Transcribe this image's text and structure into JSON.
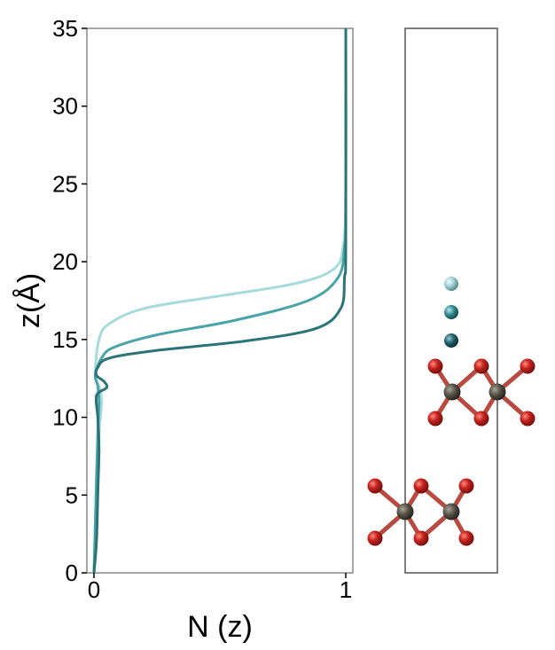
{
  "chart_data": {
    "type": "line",
    "xlabel": "N (z)",
    "ylabel": "z(Å)",
    "xlim": [
      0,
      1
    ],
    "ylim": [
      0,
      35
    ],
    "xticks": [
      "0",
      "1"
    ],
    "yticks": [
      "0",
      "5",
      "10",
      "15",
      "20",
      "25",
      "30",
      "35"
    ],
    "grid": false,
    "legend": "none",
    "series": [
      {
        "color": "#a6dadd",
        "points": [
          [
            0.0,
            0
          ],
          [
            0.005,
            3
          ],
          [
            0.01,
            6
          ],
          [
            0.02,
            9
          ],
          [
            0.03,
            11
          ],
          [
            0.02,
            12
          ],
          [
            0.005,
            12.8
          ],
          [
            0.02,
            15
          ],
          [
            0.06,
            16
          ],
          [
            0.2,
            17
          ],
          [
            0.5,
            17.8
          ],
          [
            0.8,
            18.6
          ],
          [
            0.95,
            19.5
          ],
          [
            0.99,
            21
          ],
          [
            1.0,
            25
          ],
          [
            1.0,
            35
          ]
        ]
      },
      {
        "color": "#4aa3a6",
        "points": [
          [
            0.0,
            0
          ],
          [
            0.005,
            3
          ],
          [
            0.01,
            6
          ],
          [
            0.015,
            9
          ],
          [
            0.02,
            11
          ],
          [
            0.015,
            12
          ],
          [
            0.005,
            12.7
          ],
          [
            0.03,
            13.8
          ],
          [
            0.08,
            14.5
          ],
          [
            0.25,
            15.3
          ],
          [
            0.55,
            16.2
          ],
          [
            0.85,
            17.5
          ],
          [
            0.97,
            19
          ],
          [
            0.995,
            21
          ],
          [
            1.0,
            23
          ],
          [
            1.0,
            35
          ]
        ]
      },
      {
        "color": "#2a7477",
        "points": [
          [
            0.0,
            0
          ],
          [
            0.01,
            2
          ],
          [
            0.015,
            5
          ],
          [
            0.02,
            8
          ],
          [
            0.015,
            10
          ],
          [
            0.01,
            11.4
          ],
          [
            0.05,
            11.9
          ],
          [
            0.04,
            12.3
          ],
          [
            0.01,
            12.7
          ],
          [
            0.015,
            13.2
          ],
          [
            0.06,
            13.8
          ],
          [
            0.25,
            14.3
          ],
          [
            0.6,
            14.9
          ],
          [
            0.88,
            15.7
          ],
          [
            0.98,
            17
          ],
          [
            0.995,
            19
          ],
          [
            1.0,
            21
          ],
          [
            1.0,
            35
          ]
        ]
      }
    ]
  },
  "structure_panel": {
    "adsorbate_colors": [
      "#9ecfd2",
      "#2f8a93",
      "#1e5f68"
    ],
    "oxygen_color": "#c4221c",
    "metal_color": "#545046",
    "bond_color": "#b84a40"
  }
}
